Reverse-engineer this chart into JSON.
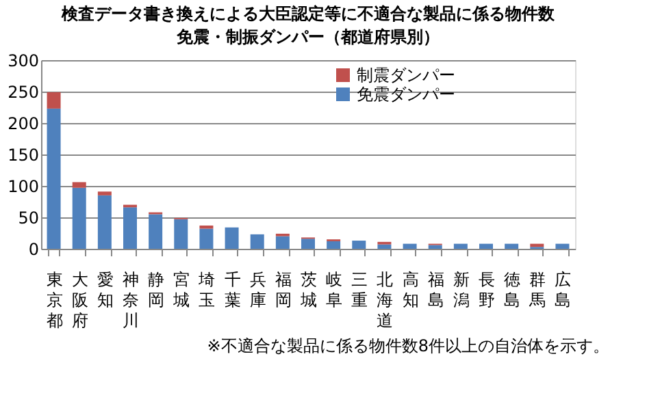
{
  "chart_data": {
    "type": "bar",
    "stacked": true,
    "title": [
      "検査データ書き換えによる大臣認定等に不適合な製品に係る物件数",
      "免震・制振ダンパー（都道府県別）"
    ],
    "categories": [
      "東京都",
      "大阪府",
      "愛知",
      "神奈川",
      "静岡",
      "宮城",
      "埼玉",
      "千葉",
      "兵庫",
      "福岡",
      "茨城",
      "岐阜",
      "三重",
      "北海道",
      "高知",
      "福島",
      "新潟",
      "長野",
      "徳島",
      "群馬",
      "広島"
    ],
    "series": [
      {
        "name": "免震ダンパー",
        "color": "#4f81bd",
        "values": [
          223,
          97,
          85,
          66,
          55,
          47,
          32,
          34,
          23,
          20,
          16,
          12,
          13,
          7,
          8,
          6,
          8,
          8,
          8,
          3,
          8
        ]
      },
      {
        "name": "制震ダンパー",
        "color": "#c0504d",
        "values": [
          26,
          9,
          6,
          4,
          3,
          2,
          5,
          0,
          0,
          4,
          2,
          3,
          0,
          4,
          0,
          2,
          0,
          0,
          0,
          5,
          0
        ]
      }
    ],
    "ylim": [
      0,
      300
    ],
    "yticks": [
      0,
      50,
      100,
      150,
      200,
      250,
      300
    ],
    "grid": "y",
    "legend": "top right",
    "annotations": [
      "※不適合な製品に係る物件数8件以上の自治体を示す。"
    ]
  }
}
